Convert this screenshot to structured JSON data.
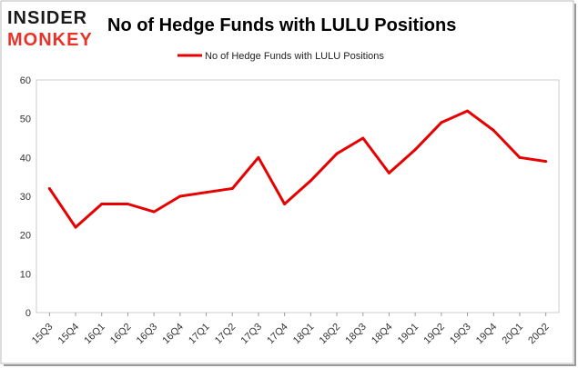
{
  "logo": {
    "line1": "INSIDER",
    "line2": "MONKEY"
  },
  "chart_data": {
    "type": "line",
    "title": "No of Hedge Funds with LULU Positions",
    "legend_position": "top",
    "grid": false,
    "categories": [
      "15Q3",
      "15Q4",
      "16Q1",
      "16Q2",
      "16Q3",
      "16Q4",
      "17Q1",
      "17Q2",
      "17Q3",
      "17Q4",
      "18Q1",
      "18Q2",
      "18Q3",
      "18Q4",
      "19Q1",
      "19Q2",
      "19Q3",
      "19Q4",
      "20Q1",
      "20Q2"
    ],
    "series": [
      {
        "name": "No of Hedge Funds with LULU Positions",
        "color": "#e60000",
        "values": [
          32,
          22,
          28,
          28,
          26,
          30,
          31,
          32,
          40,
          28,
          34,
          41,
          45,
          36,
          42,
          49,
          52,
          47,
          40,
          39
        ]
      }
    ],
    "ylim": [
      0,
      60
    ],
    "yticks": [
      0,
      10,
      20,
      30,
      40,
      50,
      60
    ]
  }
}
